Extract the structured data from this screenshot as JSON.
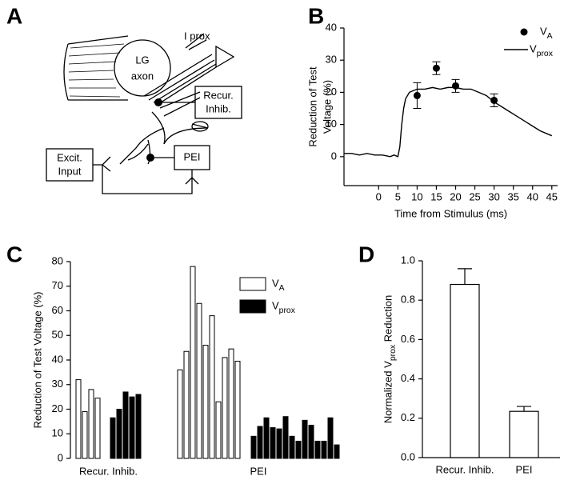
{
  "diagram": {
    "panel_label": "A",
    "labels": [
      "LG",
      "axon",
      "I prox",
      "Recur.",
      "Inhib.",
      "Excit.",
      "Input",
      "PEI"
    ]
  },
  "chart_data": [
    {
      "type": "line",
      "panel_label": "B",
      "xlabel": "Time from Stimulus (ms)",
      "ylabel": [
        "Reduction of Test",
        "Voltage (%)"
      ],
      "xlim": [
        -9,
        46.5
      ],
      "xticks": [
        0,
        5,
        10,
        15,
        20,
        25,
        30,
        35,
        40,
        45
      ],
      "ylim": [
        -9,
        40
      ],
      "yticks": [
        0,
        10,
        20,
        30,
        40
      ],
      "series": [
        {
          "name": "VA",
          "type": "scatter",
          "color": "#000",
          "x": [
            10,
            15,
            20,
            30
          ],
          "values": [
            19,
            27.5,
            22,
            17.5
          ],
          "errors": [
            4,
            2,
            2,
            2
          ]
        },
        {
          "name": "Vprox",
          "type": "line",
          "color": "#000",
          "x": [
            -9,
            -7,
            -5,
            -3,
            -1,
            1,
            3,
            4,
            5,
            5.5,
            6,
            6.5,
            7,
            8,
            9,
            10,
            12,
            14,
            16,
            18,
            20,
            22,
            24,
            26,
            28,
            30,
            32,
            34,
            36,
            38,
            40,
            42,
            44,
            45
          ],
          "values": [
            1,
            1,
            0.5,
            1,
            0.5,
            0.5,
            0,
            0.5,
            0,
            3,
            10,
            15,
            18,
            20,
            20.5,
            21,
            21,
            21.5,
            21,
            21.5,
            21.5,
            21,
            21,
            20,
            19,
            17,
            15.5,
            14,
            12.5,
            11,
            9.5,
            8,
            7,
            6.5
          ]
        }
      ]
    },
    {
      "type": "groupbar",
      "panel_label": "C",
      "ylabel": "Reduction of Test Voltage (%)",
      "categories": [
        "Recur. Inhib.",
        "PEI"
      ],
      "ylim": [
        0,
        80
      ],
      "yticks": [
        0,
        10,
        20,
        30,
        40,
        50,
        60,
        70,
        80
      ],
      "series": [
        {
          "name": "VA",
          "color": "#fff",
          "values": [
            [
              32,
              19,
              28,
              24.5
            ],
            [
              36,
              43.5,
              78,
              63,
              46,
              58,
              23,
              41,
              44.5,
              39.5
            ]
          ]
        },
        {
          "name": "Vprox",
          "color": "#000",
          "values": [
            [
              16.5,
              20,
              27,
              25,
              26
            ],
            [
              9,
              13,
              16.5,
              12.5,
              12,
              17,
              9,
              7,
              15.5,
              13.5,
              7,
              7,
              16.5,
              5.5
            ]
          ]
        }
      ]
    },
    {
      "type": "bar",
      "panel_label": "D",
      "ylabel": "Normalized Vprox Reduction",
      "categories": [
        "Recur. Inhib.",
        "PEI"
      ],
      "values": [
        0.88,
        0.235
      ],
      "errors": [
        0.08,
        0.025
      ],
      "color": "#fff",
      "ylim": [
        0,
        1.0
      ],
      "yticks": [
        {
          "value": 0,
          "label": "0.0"
        },
        0.2,
        0.4,
        0.6,
        0.8,
        {
          "value": 1,
          "label": "1.0"
        }
      ]
    }
  ]
}
